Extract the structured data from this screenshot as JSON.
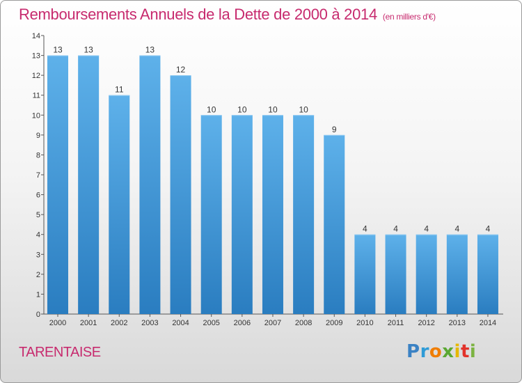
{
  "header": {
    "title": "Remboursements Annuels de la Dette de 2000 à 2014",
    "unit": "(en milliers d'€)"
  },
  "footer": {
    "location": "TARENTAISE",
    "logo_text": "Proxiti"
  },
  "colors": {
    "title": "#c72a6e",
    "bar_top": "#5eb1ea",
    "bar_bottom": "#2a7dc0"
  },
  "chart_data": {
    "type": "bar",
    "title": "Remboursements Annuels de la Dette de 2000 à 2014",
    "xlabel": "",
    "ylabel": "",
    "categories": [
      "2000",
      "2001",
      "2002",
      "2003",
      "2004",
      "2005",
      "2006",
      "2007",
      "2008",
      "2009",
      "2010",
      "2011",
      "2012",
      "2013",
      "2014"
    ],
    "values": [
      13,
      13,
      11,
      13,
      12,
      10,
      10,
      10,
      10,
      9,
      4,
      4,
      4,
      4,
      4
    ],
    "data_labels": [
      "13",
      "13",
      "11",
      "13",
      "12",
      "10",
      "10",
      "10",
      "10",
      "9",
      "4",
      "4",
      "4",
      "4",
      "4"
    ],
    "y_ticks": [
      "0",
      "1",
      "2",
      "3",
      "4",
      "5",
      "6",
      "7",
      "8",
      "9",
      "10",
      "11",
      "12",
      "13",
      "14"
    ],
    "ylim": [
      0,
      14
    ],
    "grid": false,
    "legend": "none"
  }
}
